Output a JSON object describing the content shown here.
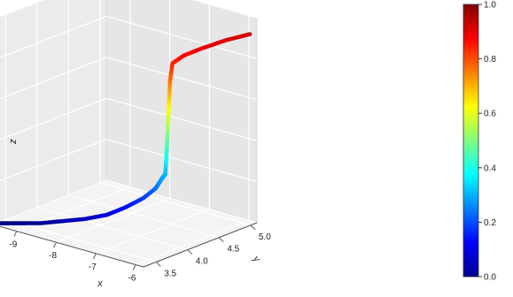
{
  "chart_data": {
    "type": "scatter",
    "title": "",
    "xlabel": "x",
    "ylabel": "y",
    "zlabel": "z",
    "x_ticks": [
      -9,
      -8,
      -7,
      -6
    ],
    "y_ticks": [
      3.5,
      4.0,
      4.5,
      5.0
    ],
    "y_tick_labels": [
      "3.5",
      "4.0",
      "4.5",
      "5.0"
    ],
    "z_ticks": [
      0.0,
      0.2,
      0.4,
      0.6,
      0.8,
      1.0
    ],
    "z_tick_labels": [
      "0.0",
      "0.2",
      "0.4",
      "0.6",
      "0.8",
      "1.0"
    ],
    "xlim": [
      -9.6,
      -5.8
    ],
    "ylim": [
      3.3,
      5.1
    ],
    "zlim": [
      0,
      1
    ],
    "grid": true,
    "colorbar": {
      "colormap": "jet",
      "range": [
        0,
        1
      ],
      "ticks": [
        0.0,
        0.2,
        0.4,
        0.6,
        0.8,
        1.0
      ],
      "tick_labels": [
        "0.0",
        "0.2",
        "0.4",
        "0.6",
        "0.8",
        "1.0"
      ]
    },
    "points": [
      {
        "x": -9.6,
        "y": 3.35,
        "z": 0.0
      },
      {
        "x": -9.2,
        "y": 3.45,
        "z": 0.01
      },
      {
        "x": -8.8,
        "y": 3.55,
        "z": 0.02
      },
      {
        "x": -8.4,
        "y": 3.65,
        "z": 0.04
      },
      {
        "x": -8.0,
        "y": 3.75,
        "z": 0.06
      },
      {
        "x": -7.6,
        "y": 3.85,
        "z": 0.09
      },
      {
        "x": -7.3,
        "y": 3.95,
        "z": 0.13
      },
      {
        "x": -7.0,
        "y": 4.05,
        "z": 0.18
      },
      {
        "x": -6.8,
        "y": 4.12,
        "z": 0.23
      },
      {
        "x": -6.7,
        "y": 4.16,
        "z": 0.28
      },
      {
        "x": -6.65,
        "y": 4.18,
        "z": 0.3
      },
      {
        "x": -6.62,
        "y": 4.19,
        "z": 0.45
      },
      {
        "x": -6.6,
        "y": 4.2,
        "z": 0.6
      },
      {
        "x": -6.58,
        "y": 4.21,
        "z": 0.75
      },
      {
        "x": -6.55,
        "y": 4.23,
        "z": 0.84
      },
      {
        "x": -6.45,
        "y": 4.35,
        "z": 0.87
      },
      {
        "x": -6.3,
        "y": 4.55,
        "z": 0.89
      },
      {
        "x": -6.1,
        "y": 4.8,
        "z": 0.91
      },
      {
        "x": -5.9,
        "y": 5.05,
        "z": 0.92
      }
    ]
  }
}
